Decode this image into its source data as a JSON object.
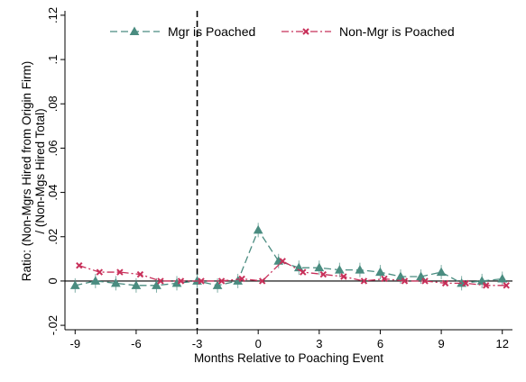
{
  "chart_data": {
    "type": "line",
    "xlabel": "Months Relative to Poaching Event",
    "ylabel_line1": "Ratio: (Non-Mgrs Hired from Origin Firm)",
    "ylabel_line2": "/ (Non-Mgs Hired Total)",
    "xlim": [
      -9.5,
      12.5
    ],
    "ylim": [
      -0.022,
      0.122
    ],
    "xticks": [
      -9,
      -6,
      -3,
      0,
      3,
      6,
      9,
      12
    ],
    "xtick_labels": [
      "-9",
      "-6",
      "-3",
      "0",
      "3",
      "6",
      "9",
      "12"
    ],
    "yticks": [
      -0.02,
      0,
      0.02,
      0.04,
      0.06,
      0.08,
      0.1,
      0.12
    ],
    "ytick_labels": [
      "-.02",
      "0",
      ".02",
      ".04",
      ".06",
      ".08",
      ".1",
      ".12"
    ],
    "reference_line_x": -3,
    "legend_position": "top",
    "series": [
      {
        "name": "Mgr is Poached",
        "color": "#4a8c80",
        "marker": "triangle",
        "x": [
          -9,
          -8,
          -7,
          -6,
          -5,
          -4,
          -3,
          -2,
          -1,
          0,
          1,
          2,
          3,
          4,
          5,
          6,
          7,
          8,
          9,
          10,
          11,
          12
        ],
        "y": [
          -0.002,
          0.0,
          -0.001,
          -0.002,
          -0.002,
          -0.001,
          0.0,
          -0.002,
          0.0,
          0.023,
          0.009,
          0.006,
          0.006,
          0.005,
          0.005,
          0.004,
          0.002,
          0.002,
          0.004,
          -0.001,
          0.0,
          0.001
        ]
      },
      {
        "name": "Non-Mgr is Poached",
        "color": "#c8305a",
        "marker": "x",
        "x": [
          -8.8,
          -7.8,
          -6.8,
          -5.8,
          -4.8,
          -3.8,
          -2.8,
          -1.8,
          -0.8,
          0.2,
          1.2,
          2.2,
          3.2,
          4.2,
          5.2,
          6.2,
          7.2,
          8.2,
          9.2,
          10.2,
          11.2,
          12.2
        ],
        "y": [
          0.007,
          0.004,
          0.004,
          0.003,
          0.0,
          0.0,
          0.0,
          0.0,
          0.001,
          0.0,
          0.009,
          0.004,
          0.003,
          0.002,
          0.0,
          0.001,
          0.0,
          0.0,
          -0.001,
          -0.001,
          -0.002,
          -0.002
        ]
      }
    ]
  }
}
